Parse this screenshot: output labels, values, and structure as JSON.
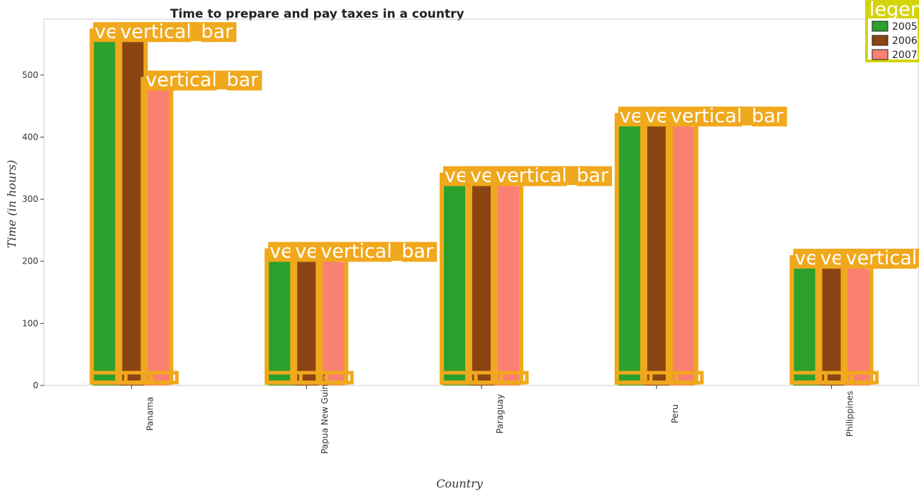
{
  "chart_data": {
    "type": "bar",
    "title": "Time to prepare and pay taxes in a country",
    "xlabel": "Country",
    "ylabel": "Time (in hours)",
    "categories": [
      "Panama",
      "Papua New Guinea",
      "Paraguay",
      "Peru",
      "Philippines"
    ],
    "series": [
      {
        "name": "2005",
        "color": "#2ca02c",
        "values": [
          560,
          206,
          328,
          424,
          195
        ]
      },
      {
        "name": "2006",
        "color": "#8b4513",
        "values": [
          560,
          206,
          328,
          424,
          195
        ]
      },
      {
        "name": "2007",
        "color": "#fa8072",
        "values": [
          482,
          206,
          328,
          424,
          195
        ]
      }
    ],
    "ylim": [
      0,
      590
    ],
    "yticks": [
      0,
      100,
      200,
      300,
      400,
      500
    ],
    "legend_position": "top-right",
    "legend_title": "legend",
    "overlay_label": "vertical_bar",
    "overlay_color": "#f0a81c",
    "legend_highlight_color": "#d4d40a"
  }
}
